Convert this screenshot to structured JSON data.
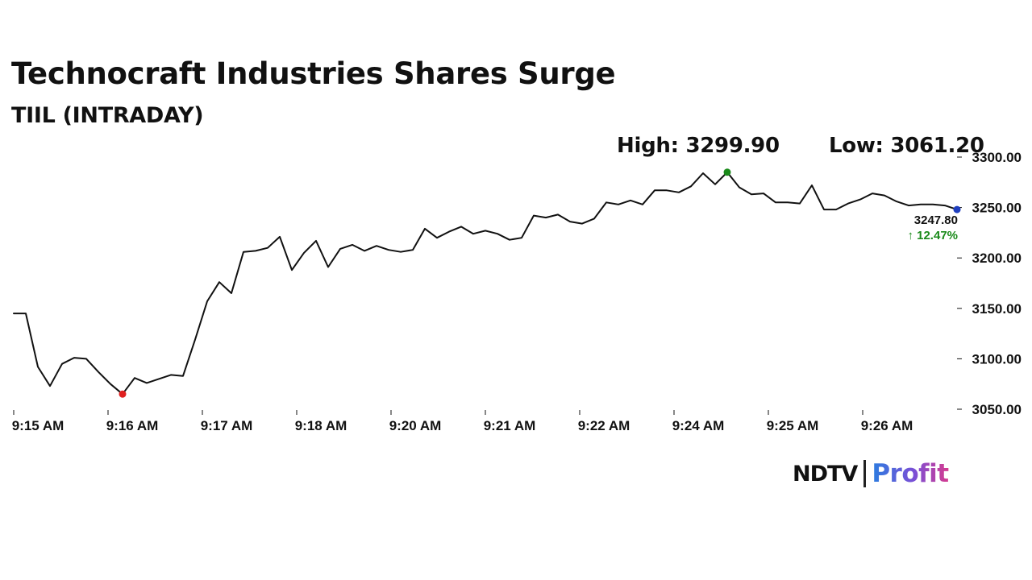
{
  "header": {
    "title": "Technocraft Industries Shares Surge",
    "subtitle": "TIIL (INTRADAY)"
  },
  "stats": {
    "high_label": "High: 3299.90",
    "low_label": "Low: 3061.20"
  },
  "last_point": {
    "price_label": "3247.80",
    "change_label": "↑ 12.47%"
  },
  "brand": {
    "left": "NDTV",
    "right": "Profit"
  },
  "colors": {
    "line": "#111111",
    "high_marker": "#1a8a1a",
    "low_marker": "#e02020",
    "last_marker": "#1f3fbf",
    "change_text": "#1a8a1a",
    "axis": "#111111"
  },
  "chart_data": {
    "type": "line",
    "title": "Technocraft Industries Shares Surge",
    "subtitle": "TIIL (INTRADAY)",
    "xlabel": "",
    "ylabel": "",
    "x_ticks": [
      "9:15 AM",
      "9:16 AM",
      "9:17 AM",
      "9:18 AM",
      "9:20 AM",
      "9:21 AM",
      "9:22 AM",
      "9:24 AM",
      "9:25 AM",
      "9:26 AM"
    ],
    "y_ticks": [
      "3050.00",
      "3100.00",
      "3150.00",
      "3200.00",
      "3250.00",
      "3300.00"
    ],
    "ylim": [
      3050,
      3300
    ],
    "grid": false,
    "series": [
      {
        "values": [
          3145,
          3145,
          3092,
          3073,
          3095,
          3101,
          3100,
          3087,
          3075,
          3065,
          3081,
          3076,
          3080,
          3084,
          3083,
          3119,
          3157,
          3176,
          3165,
          3206,
          3207,
          3210,
          3221,
          3188,
          3205,
          3217,
          3191,
          3209,
          3213,
          3207,
          3212,
          3208,
          3206,
          3208,
          3229,
          3220,
          3226,
          3231,
          3224,
          3227,
          3224,
          3218,
          3220,
          3242,
          3240,
          3243,
          3236,
          3234,
          3239,
          3255,
          3253,
          3257,
          3253,
          3267,
          3267,
          3265,
          3271,
          3284,
          3273,
          3285,
          3270,
          3263,
          3264,
          3255,
          3255,
          3254,
          3272,
          3248,
          3248,
          3254,
          3258,
          3264,
          3262,
          3256,
          3252,
          3253,
          3253,
          3252,
          3248
        ]
      }
    ],
    "markers": {
      "low_index": 9,
      "high_index": 59,
      "last_index": 78
    },
    "annotations": [
      "High: 3299.90",
      "Low: 3061.20",
      "3247.80",
      "↑ 12.47%"
    ]
  }
}
